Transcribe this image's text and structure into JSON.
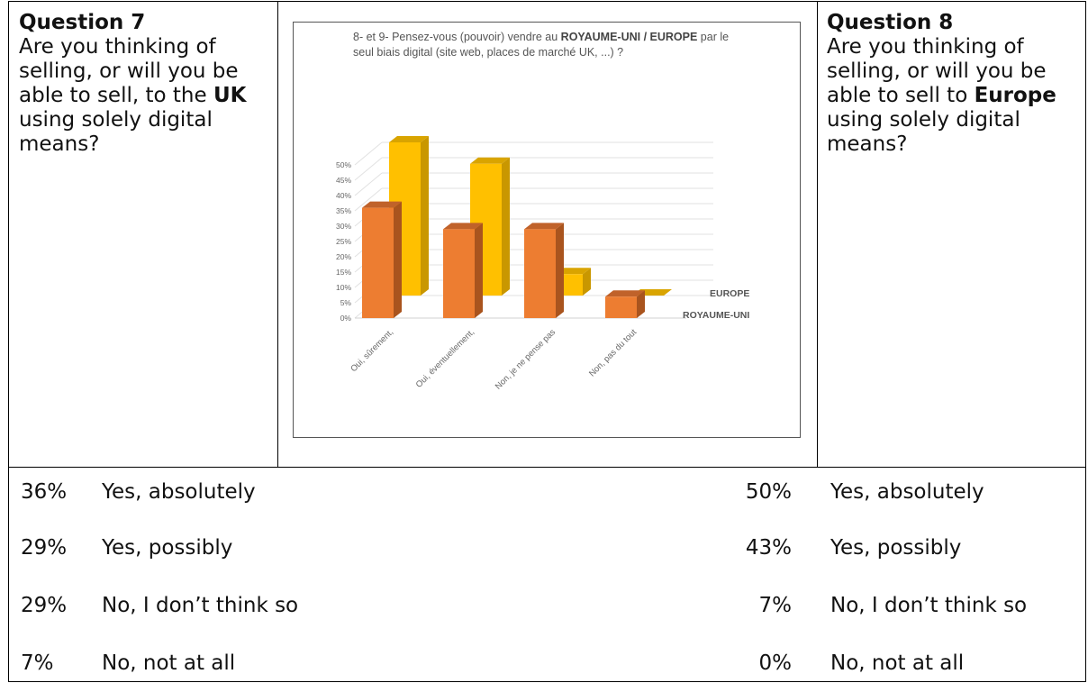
{
  "question7": {
    "title": "Question 7",
    "text_before": "Are you thinking of selling, or will you be able to sell, to the ",
    "bold": "UK",
    "text_after": " using solely digital means?"
  },
  "question8": {
    "title": "Question 8",
    "text_before": "Are you thinking of selling, or will you be able to sell to ",
    "bold": "Europe",
    "text_after": " using solely digital means?"
  },
  "chart_data": {
    "type": "bar",
    "title_parts": [
      "8- et 9- Pensez-vous (pouvoir) vendre au ",
      "ROYAUME-UNI / EUROPE",
      " par le seul biais digital (site web, places de marché UK, ...) ?"
    ],
    "categories": [
      "Oui, sûrement,",
      "Oui, éventuellement,",
      "Non, je ne pense pas",
      "Non, pas du tout"
    ],
    "series": [
      {
        "name": "EUROPE",
        "values": [
          50,
          43,
          7,
          0
        ],
        "color": "#FFC000",
        "side_color": "#C99700",
        "top_color": "#D9A400"
      },
      {
        "name": "ROYAUME-UNI",
        "values": [
          36,
          29,
          29,
          7
        ],
        "color": "#ED7D31",
        "side_color": "#A9541E",
        "top_color": "#C0622A"
      }
    ],
    "yticks": [
      "0%",
      "5%",
      "10%",
      "15%",
      "20%",
      "25%",
      "30%",
      "35%",
      "40%",
      "45%",
      "50%"
    ],
    "ylim": [
      0,
      50
    ],
    "grid": true
  },
  "uk_results": [
    {
      "pct": "36%",
      "label": "Yes, absolutely"
    },
    {
      "pct": "29%",
      "label": "Yes, possibly"
    },
    {
      "pct": "29%",
      "label": "No, I don’t think so"
    },
    {
      "pct": "7%",
      "label": "No, not at all"
    }
  ],
  "europe_results": [
    {
      "pct": "50%",
      "label": "Yes, absolutely"
    },
    {
      "pct": "43%",
      "label": "Yes, possibly"
    },
    {
      "pct": "7%",
      "label": "No, I don’t think so"
    },
    {
      "pct": "0%",
      "label": "No, not at all"
    }
  ]
}
